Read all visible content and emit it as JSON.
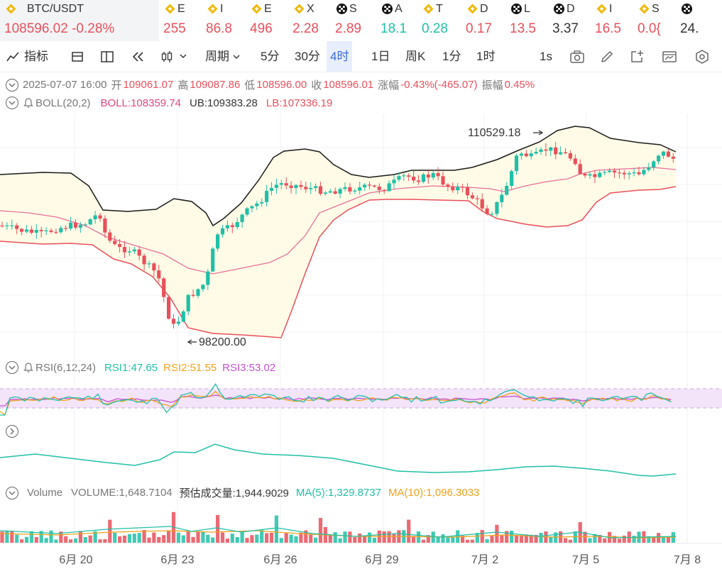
{
  "tickers": [
    {
      "icon": "binance-icon",
      "name": "BTC/USDT",
      "value": "108596.02 -0.28%",
      "color": "#e8505b",
      "active": true
    },
    {
      "icon": "binance-icon",
      "name": "E",
      "value": "255",
      "color": "#e8505b"
    },
    {
      "icon": "binance-icon",
      "name": "I",
      "value": "86.8",
      "color": "#e8505b"
    },
    {
      "icon": "binance-icon",
      "name": "E",
      "value": "496",
      "color": "#e8505b"
    },
    {
      "icon": "binance-icon",
      "name": "X",
      "value": "2.28",
      "color": "#e8505b"
    },
    {
      "icon": "okx-icon",
      "name": "S",
      "value": "2.89",
      "color": "#e8505b"
    },
    {
      "icon": "okx-icon",
      "name": "A",
      "value": "18.1",
      "color": "#20bfa7"
    },
    {
      "icon": "binance-icon",
      "name": "T",
      "value": "0.28",
      "color": "#20bfa7"
    },
    {
      "icon": "binance-icon",
      "name": "D",
      "value": "0.17",
      "color": "#e8505b"
    },
    {
      "icon": "okx-icon",
      "name": "L",
      "value": "13.5",
      "color": "#e8505b"
    },
    {
      "icon": "okx-icon",
      "name": "D",
      "value": "3.37",
      "color": "#333333"
    },
    {
      "icon": "binance-icon",
      "name": "I",
      "value": "16.5",
      "color": "#e8505b"
    },
    {
      "icon": "binance-icon",
      "name": "S",
      "value": "0.0{",
      "color": "#e8505b"
    },
    {
      "icon": "okx-icon",
      "name": "",
      "value": "24.",
      "color": "#333333"
    }
  ],
  "toolbar": {
    "indicators": "指标",
    "period": "周期",
    "periods": [
      "5分",
      "30分",
      "4时",
      "1日",
      "周K",
      "1分",
      "1时"
    ],
    "selected_period": "4时",
    "refresh": "1s"
  },
  "ohlc": {
    "date": "2025-07-07 16:00",
    "open_label": "开",
    "open": "109061.07",
    "high_label": "高",
    "high": "109087.86",
    "low_label": "低",
    "low": "108596.00",
    "close_label": "收",
    "close": "108596.01",
    "change_label": "涨幅",
    "change": "-0.43%(-465.07)",
    "amp_label": "振幅",
    "amp": "0.45%"
  },
  "boll": {
    "title": "BOLL(20,2)",
    "mid": "BOLL:108359.74",
    "ub": "UB:109383.28",
    "lb": "LB:107336.19"
  },
  "rsi": {
    "title": "RSI(6,12,24)",
    "rsi1": "RSI1:47.65",
    "rsi2": "RSI2:51.55",
    "rsi3": "RSI3:53.02"
  },
  "volume": {
    "title": "Volume",
    "vol": "VOLUME:1,648.7104",
    "est": "预估成交量:1,944.9029",
    "ma5": "MA(5):1,329.8737",
    "ma10": "MA(10):1,096.3033"
  },
  "annotations": {
    "high": "110529.18",
    "low": "98200.00"
  },
  "colors": {
    "up": "#20bfa7",
    "down": "#e8505b",
    "ub": "#1a1a1a",
    "mid": "#e8709a",
    "lb": "#e8505b",
    "band": "#fffbe6",
    "rsi1": "#20bfa7",
    "rsi2": "#f0a21a",
    "rsi3": "#c64fd0",
    "selected": "#3b6bdc"
  },
  "chart_data": {
    "type": "candlestick",
    "symbol": "BTC/USDT",
    "interval": "4时",
    "x_tick_labels": [
      "6月 20",
      "6月 23",
      "6月 26",
      "6月 29",
      "7月 2",
      "7月 5",
      "7月 8"
    ],
    "annotations": [
      {
        "label": "110529.18",
        "kind": "high"
      },
      {
        "label": "98200.00",
        "kind": "low"
      }
    ],
    "series": [
      {
        "name": "BOLL",
        "values_approx": {
          "start": 104700,
          "min": 100900,
          "end": 108360
        }
      },
      {
        "name": "UB",
        "values_approx": {
          "start": 106200,
          "min": 103200,
          "end": 109383
        }
      },
      {
        "name": "LB",
        "values_approx": {
          "start": 102800,
          "min": 98500,
          "end": 107336
        }
      }
    ]
  }
}
